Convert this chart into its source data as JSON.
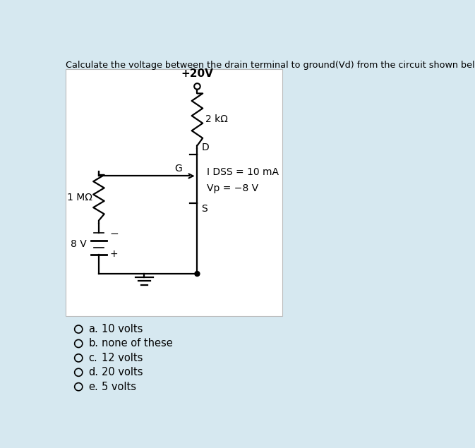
{
  "title": "Calculate the voltage between the drain terminal to ground(Vd) from the circuit shown below.",
  "bg_color": "#d6e8f0",
  "circuit_bg": "#ffffff",
  "options": [
    {
      "letter": "a.",
      "text": "10 volts"
    },
    {
      "letter": "b.",
      "text": "none of these"
    },
    {
      "letter": "c.",
      "text": "12 volts"
    },
    {
      "letter": "d.",
      "text": "20 volts"
    },
    {
      "letter": "e.",
      "text": "5 volts"
    }
  ],
  "supply_label": "+20V",
  "resistor_top_label": "2 kΩ",
  "resistor_left_label": "1 MΩ",
  "voltage_source_label": "8 V",
  "node_D": "D",
  "node_G": "G",
  "node_S": "S",
  "idss_label": "I DSS = 10 mA",
  "vp_label": "Vp = -8 V"
}
